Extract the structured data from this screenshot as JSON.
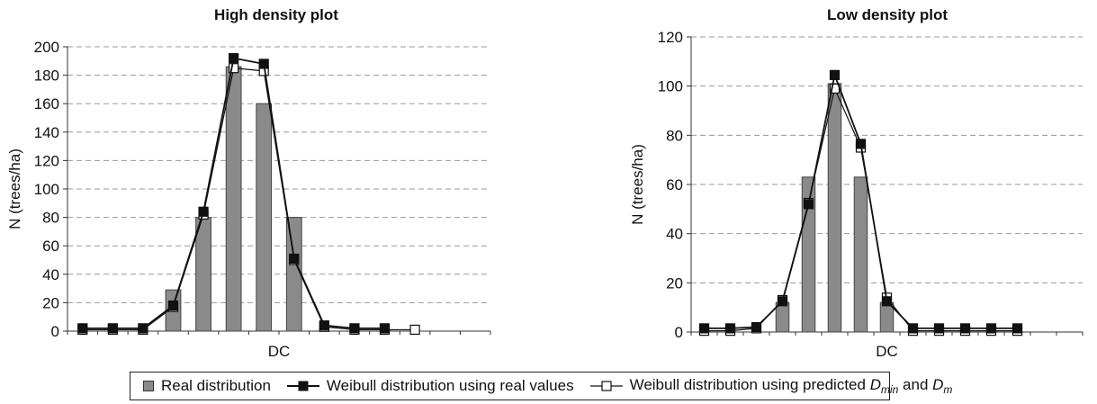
{
  "chart_data": [
    {
      "type": "bar+line",
      "title": "High density plot",
      "xlabel": "DC",
      "ylabel": "N (trees/ha)",
      "ylim": [
        0,
        200
      ],
      "yticks": [
        0,
        20,
        40,
        60,
        80,
        100,
        120,
        140,
        160,
        180,
        200
      ],
      "grid": "horizontal dashed",
      "n_categories": 14,
      "series": [
        {
          "name": "Real distribution",
          "kind": "bar",
          "color": "#8a8a8a",
          "values": [
            0,
            0,
            0,
            29,
            80,
            186,
            160,
            80,
            0,
            0,
            0,
            0,
            0,
            0
          ]
        },
        {
          "name": "Weibull distribution using real values",
          "kind": "line",
          "marker": "filled-square",
          "values": [
            2,
            2,
            2,
            18,
            84,
            192,
            188,
            51,
            4,
            2,
            2,
            null,
            null,
            null
          ]
        },
        {
          "name": "Weibull distribution using predicted Dmin and Dm",
          "kind": "line",
          "marker": "open-square",
          "values": [
            1,
            1,
            1,
            17,
            82,
            185,
            183,
            50,
            3,
            1,
            1,
            1,
            null,
            null
          ]
        }
      ]
    },
    {
      "type": "bar+line",
      "title": "Low density plot",
      "xlabel": "DC",
      "ylabel": "N (trees/ha)",
      "ylim": [
        0,
        120
      ],
      "yticks": [
        0,
        20,
        40,
        60,
        80,
        100,
        120
      ],
      "grid": "horizontal dashed",
      "n_categories": 15,
      "series": [
        {
          "name": "Real distribution",
          "kind": "bar",
          "color": "#8a8a8a",
          "values": [
            0,
            0,
            0,
            12,
            63,
            101,
            63,
            12,
            0,
            0,
            0,
            0,
            0,
            0,
            0
          ]
        },
        {
          "name": "Weibull distribution using real values",
          "kind": "line",
          "marker": "filled-square",
          "values": [
            1.5,
            1.5,
            2,
            12.5,
            52,
            104.5,
            76.5,
            12.5,
            1.5,
            1.5,
            1.5,
            1.5,
            1.5,
            null,
            null
          ]
        },
        {
          "name": "Weibull distribution using predicted Dmin and Dm",
          "kind": "line",
          "marker": "open-square",
          "values": [
            0.5,
            0.5,
            1.5,
            13,
            52.5,
            99,
            75,
            14,
            0.5,
            0.5,
            0.5,
            0.5,
            0.5,
            null,
            null
          ]
        }
      ]
    }
  ],
  "legend": {
    "real": "Real distribution",
    "weibull_real": "Weibull distribution using real values",
    "weibull_pred_prefix": "Weibull distribution using predicted ",
    "weibull_pred_var1": "D",
    "weibull_pred_sub1": "min",
    "weibull_pred_and": " and ",
    "weibull_pred_var2": "D",
    "weibull_pred_sub2": "m"
  }
}
